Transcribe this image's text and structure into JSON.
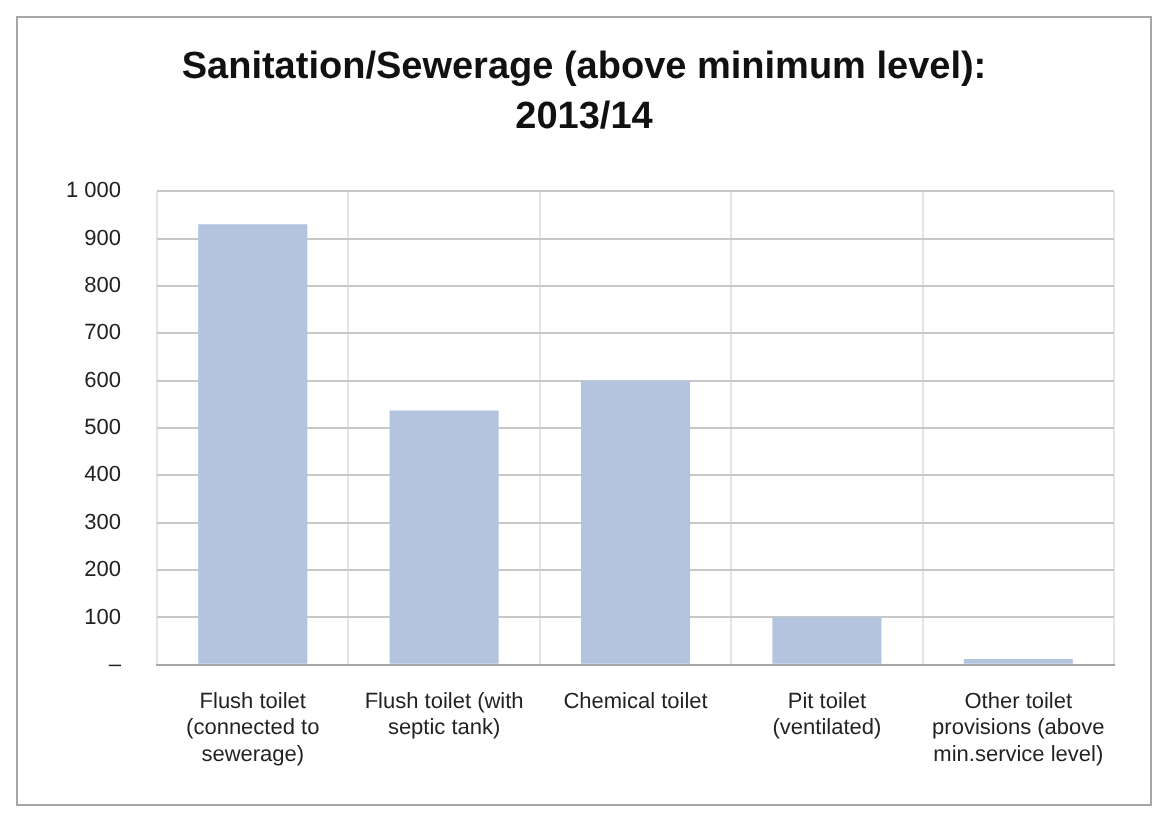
{
  "chart_data": {
    "type": "bar",
    "title": "Sanitation/Sewerage (above minimum level): 2013/14",
    "categories": [
      "Flush toilet (connected to sewerage)",
      "Flush toilet (with septic tank)",
      "Chemical toilet",
      "Pit toilet (ventilated)",
      "Other toilet provisions (above min.service level)"
    ],
    "values": [
      930,
      537,
      600,
      100,
      12
    ],
    "color": "#b4c3de",
    "ylim": [
      0,
      1000
    ],
    "yticks": [
      {
        "value": 0,
        "label": "–"
      },
      100,
      200,
      300,
      400,
      500,
      600,
      700,
      800,
      900,
      {
        "value": 1000,
        "label": "1 000"
      }
    ],
    "grid": true,
    "legend": false
  }
}
